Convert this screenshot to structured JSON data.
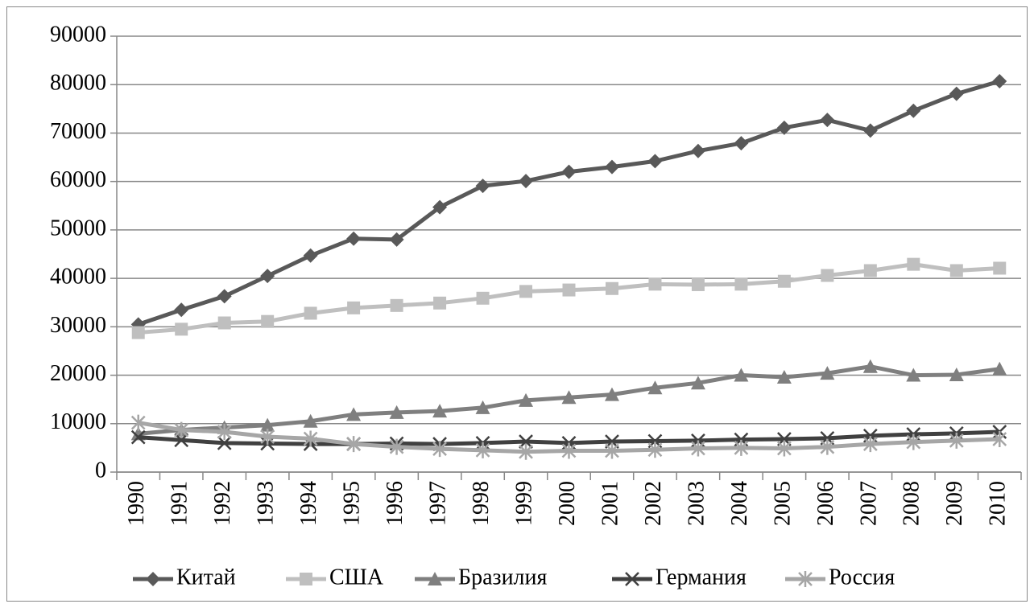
{
  "chart_data": {
    "type": "line",
    "categories": [
      "1990",
      "1991",
      "1992",
      "1993",
      "1994",
      "1995",
      "1996",
      "1997",
      "1998",
      "1999",
      "2000",
      "2001",
      "2002",
      "2003",
      "2004",
      "2005",
      "2006",
      "2007",
      "2008",
      "2009",
      "2010"
    ],
    "series": [
      {
        "name": "Китай",
        "color": "#595959",
        "marker": "diamond",
        "values": [
          30500,
          33500,
          36300,
          40500,
          44700,
          48200,
          48000,
          54700,
          59100,
          60100,
          62000,
          63000,
          64200,
          66300,
          67900,
          71100,
          72700,
          70500,
          74600,
          78100,
          80700
        ]
      },
      {
        "name": "США",
        "color": "#bfbfbf",
        "marker": "square",
        "values": [
          28800,
          29500,
          30800,
          31100,
          32800,
          33900,
          34400,
          34900,
          35900,
          37300,
          37600,
          37900,
          38800,
          38700,
          38800,
          39400,
          40600,
          41600,
          42900,
          41600,
          42100
        ]
      },
      {
        "name": "Бразилия",
        "color": "#7f7f7f",
        "marker": "triangle",
        "values": [
          7900,
          8700,
          9200,
          9700,
          10500,
          11900,
          12300,
          12600,
          13300,
          14800,
          15400,
          16000,
          17400,
          18400,
          20000,
          19600,
          20400,
          21800,
          20000,
          20100,
          21300
        ]
      },
      {
        "name": "Германия",
        "color": "#404040",
        "marker": "x",
        "values": [
          7200,
          6600,
          6000,
          5900,
          5800,
          5800,
          5900,
          5800,
          6000,
          6300,
          6000,
          6300,
          6400,
          6500,
          6700,
          6800,
          7000,
          7500,
          7800,
          8000,
          8300
        ]
      },
      {
        "name": "Россия",
        "color": "#a6a6a6",
        "marker": "star",
        "values": [
          10200,
          8700,
          8300,
          7300,
          6900,
          5800,
          5200,
          4800,
          4500,
          4200,
          4400,
          4400,
          4600,
          4900,
          5000,
          4900,
          5200,
          5800,
          6200,
          6500,
          6800
        ]
      }
    ],
    "ylim": [
      0,
      90000
    ],
    "yticks": [
      0,
      10000,
      20000,
      30000,
      40000,
      50000,
      60000,
      70000,
      80000,
      90000
    ],
    "grid": true,
    "legend": "bottom"
  }
}
